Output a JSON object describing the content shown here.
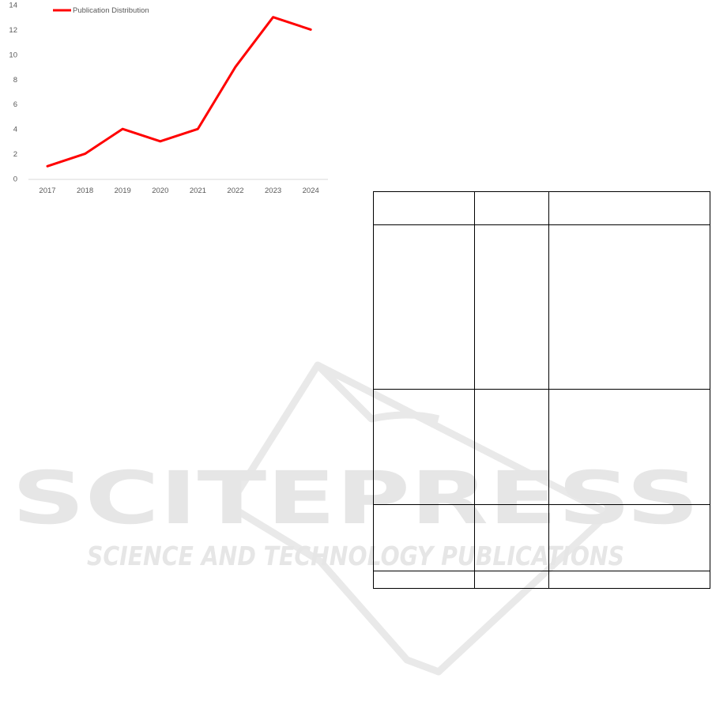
{
  "chart_data": {
    "type": "line",
    "title": "",
    "xlabel": "",
    "ylabel": "",
    "categories": [
      "2017",
      "2018",
      "2019",
      "2020",
      "2021",
      "2022",
      "2023",
      "2024"
    ],
    "series": [
      {
        "name": "Publication Distribution",
        "values": [
          1,
          2,
          4,
          3,
          4,
          9,
          13,
          12
        ],
        "color": "#ff0000"
      }
    ],
    "ylim": [
      0,
      14
    ],
    "yticks": [
      "0",
      "2",
      "4",
      "6",
      "8",
      "10",
      "12",
      "14"
    ],
    "grid": false,
    "legend": "top-left"
  },
  "watermark": {
    "brand": "SCITEPRESS",
    "tagline": "SCIENCE AND TECHNOLOGY PUBLICATIONS",
    "color": "#e6e6e6"
  },
  "table": {
    "rows": [
      [
        "",
        "",
        ""
      ],
      [
        "",
        "",
        ""
      ],
      [
        "",
        "",
        ""
      ],
      [
        "",
        "",
        ""
      ],
      [
        "",
        "",
        ""
      ]
    ]
  }
}
